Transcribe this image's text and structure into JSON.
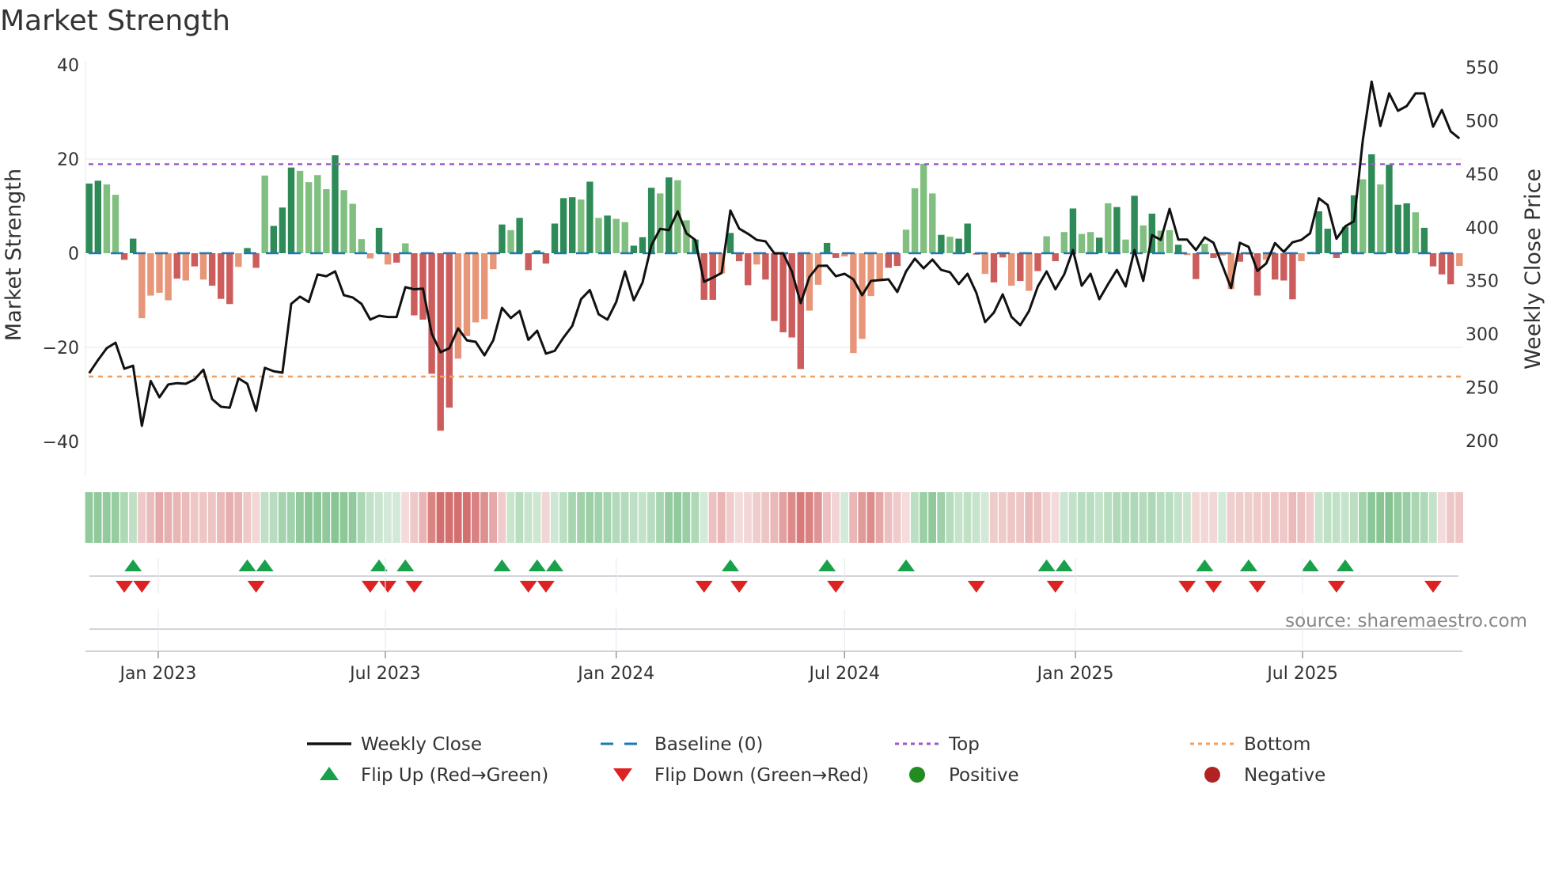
{
  "chart_data": {
    "type": "bar",
    "title": "Market Strength",
    "ylabel": "Market Strength",
    "y2label": "Weekly Close Price",
    "ylim": [
      -40,
      40
    ],
    "y2lim": [
      200,
      550
    ],
    "yticks": [
      "40",
      "20",
      "0",
      "−20",
      "−40"
    ],
    "yticks_values": [
      40,
      20,
      0,
      -20,
      -40
    ],
    "y2ticks": [
      "550",
      "500",
      "450",
      "400",
      "350",
      "300",
      "250",
      "200"
    ],
    "y2ticks_values": [
      550,
      500,
      450,
      400,
      350,
      300,
      250,
      200
    ],
    "start_week": "2022-11-07",
    "xticks": [
      {
        "label": "Jan 2023",
        "date": "2023-01-01"
      },
      {
        "label": "Jul 2023",
        "date": "2023-07-01"
      },
      {
        "label": "Jan 2024",
        "date": "2024-01-01"
      },
      {
        "label": "Jul 2024",
        "date": "2024-07-01"
      },
      {
        "label": "Jan 2025",
        "date": "2025-01-01"
      },
      {
        "label": "Jul 2025",
        "date": "2025-07-01"
      }
    ],
    "top_level": 18.9,
    "bottom_level": -26.2,
    "strength": [
      14.8,
      15.4,
      14.6,
      12.4,
      -1.4,
      3.1,
      -13.8,
      -9.0,
      -8.4,
      -10.0,
      -5.4,
      -5.8,
      -2.8,
      -5.6,
      -6.9,
      -9.7,
      -10.8,
      -2.9,
      1.1,
      -3.1,
      16.5,
      5.8,
      9.7,
      18.2,
      17.5,
      15.1,
      16.6,
      13.6,
      20.8,
      13.4,
      10.5,
      3.0,
      -1.1,
      5.4,
      -2.4,
      -2.0,
      2.1,
      -13.2,
      -14.1,
      -25.6,
      -37.7,
      -32.8,
      -22.4,
      -17.6,
      -14.7,
      -14.0,
      -3.4,
      6.1,
      4.9,
      7.5,
      -3.6,
      0.6,
      -2.2,
      6.3,
      11.7,
      11.9,
      11.4,
      15.2,
      7.5,
      8.0,
      7.3,
      6.6,
      1.6,
      3.4,
      13.9,
      12.7,
      16.1,
      15.5,
      7.0,
      2.9,
      -9.9,
      -9.9,
      -4.3,
      4.3,
      -1.7,
      -6.8,
      -2.4,
      -5.6,
      -14.4,
      -16.8,
      -17.9,
      -24.6,
      -12.2,
      -6.7,
      2.2,
      -1.0,
      -0.7,
      -21.2,
      -18.2,
      -9.1,
      -5.6,
      -3.1,
      -2.7,
      5.0,
      13.8,
      19.0,
      12.7,
      3.9,
      3.5,
      3.1,
      6.3,
      -0.3,
      -4.4,
      -6.2,
      -0.9,
      -6.9,
      -5.9,
      -8.0,
      -3.8,
      3.6,
      -1.7,
      4.5,
      9.5,
      4.1,
      4.5,
      3.3,
      10.6,
      9.8,
      2.9,
      12.2,
      5.9,
      8.4,
      4.8,
      4.9,
      1.8,
      -0.4,
      -5.5,
      2.0,
      -1.0,
      -0.5,
      -7.6,
      -1.8,
      -0.3,
      -9.0,
      -1.4,
      -5.6,
      -5.8,
      -9.8,
      -1.7,
      0.3,
      8.9,
      5.2,
      -1.0,
      5.6,
      12.3,
      15.7,
      21.0,
      14.6,
      18.8,
      10.3,
      10.6,
      8.7,
      5.4,
      -2.8,
      -4.5,
      -6.6,
      -2.7
    ],
    "strength_shade": "ddllddlllldldldddlddldddlllldlllldldldddddllllldldddddddldldlldddldlldddldddldddddllddlllllddlllldldddlddldldldldlldldldldlldldldlldldldddlldddddldldddldddd",
    "weekly_close": [
      263.3,
      275.6,
      286.8,
      291.9,
      267.5,
      270.3,
      214,
      256,
      240.8,
      252.7,
      254,
      253.4,
      257.5,
      266.6,
      239,
      231.9,
      231,
      258.5,
      253.4,
      228,
      268.3,
      265.2,
      263.8,
      328.3,
      335,
      330,
      355.8,
      354.2,
      358.7,
      336.4,
      334.3,
      328.3,
      313.5,
      317.2,
      316,
      316,
      343.9,
      341.9,
      342.6,
      300.4,
      283,
      286.8,
      305.3,
      294.1,
      292.7,
      280,
      294.1,
      324.5,
      315,
      321.6,
      294.6,
      303.1,
      281.6,
      284.3,
      296.7,
      307.6,
      332.7,
      341.2,
      318.6,
      313.5,
      330,
      358.7,
      331.7,
      348.3,
      383,
      398.6,
      397.3,
      415,
      394.3,
      388.2,
      349,
      352.8,
      357.3,
      415.8,
      398.8,
      394,
      388.2,
      386.9,
      375.7,
      375.7,
      358.7,
      329,
      353.5,
      363.9,
      364,
      354.2,
      356.5,
      351.3,
      336.4,
      349.8,
      350.5,
      351.3,
      339.4,
      358.7,
      370.6,
      361.6,
      369.8,
      360.1,
      357.9,
      346.8,
      356.5,
      338.7,
      311.2,
      320.1,
      337.2,
      316.1,
      308.3,
      321.6,
      344.6,
      358.7,
      341.9,
      355.8,
      378.7,
      345.3,
      356.5,
      332.7,
      346.8,
      360.1,
      344.6,
      378.7,
      349.8,
      392.7,
      388.2,
      417.3,
      388.5,
      388.5,
      378.7,
      390.6,
      385.5,
      364.6,
      343.1,
      385.5,
      381.7,
      359.2,
      366.1,
      385.2,
      377,
      386,
      388.2,
      394.4,
      427.2,
      420.9,
      389.3,
      400.9,
      405.8,
      481.8,
      536.6,
      495,
      525.5,
      509.2,
      513.7,
      525.5,
      525.5,
      494.3,
      510,
      489.9,
      483.3
    ],
    "flip_up_weeks": [
      6,
      19,
      21,
      34,
      37,
      48,
      52,
      54,
      74,
      85,
      94,
      110,
      112,
      128,
      133,
      140,
      144
    ],
    "flip_down_weeks": [
      5,
      7,
      20,
      33,
      35,
      38,
      51,
      53,
      71,
      75,
      86,
      102,
      111,
      126,
      129,
      134,
      143,
      154
    ],
    "legend": [
      {
        "label": "Weekly Close",
        "kind": "line",
        "color": "#111111"
      },
      {
        "label": "Baseline (0)",
        "kind": "dash",
        "color": "#1f77b4"
      },
      {
        "label": "Top",
        "kind": "dot",
        "color": "#9b59d0"
      },
      {
        "label": "Bottom",
        "kind": "dot",
        "color": "#f0a060"
      },
      {
        "label": "Flip Up (Red→Green)",
        "kind": "tri-up",
        "color": "#18a04a"
      },
      {
        "label": "Flip Down (Green→Red)",
        "kind": "tri-down",
        "color": "#dd2222"
      },
      {
        "label": "Positive",
        "kind": "dot-marker",
        "color": "#228b22"
      },
      {
        "label": "Negative",
        "kind": "dot-marker",
        "color": "#b22222"
      }
    ],
    "legend_placement": "bottom",
    "source": "source: sharemaestro.com",
    "colors": {
      "pos_dark": "#2e8b57",
      "pos_light": "#80bf7f",
      "neg_dark": "#cd5c5c",
      "neg_light": "#e8967a"
    }
  }
}
